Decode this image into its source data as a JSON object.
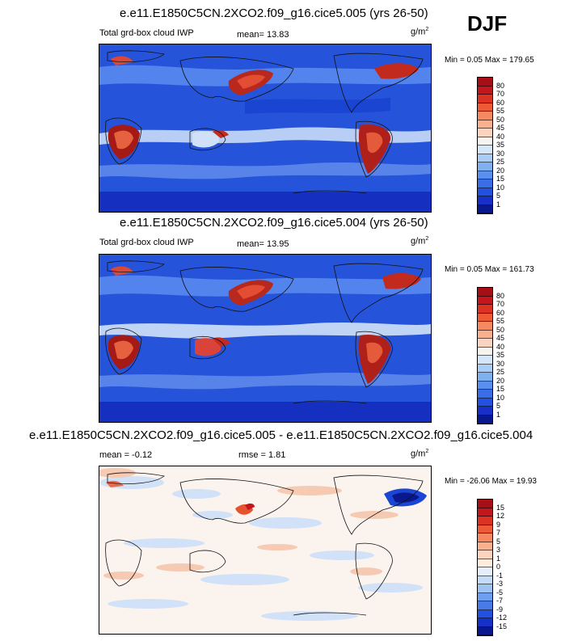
{
  "season": "DJF",
  "panels": [
    {
      "title": "e.e11.E1850C5CN.2XCO2.f09_g16.cice5.005 (yrs 26-50)",
      "left_label": "Total grd-box cloud IWP",
      "mean_label": "mean=  13.83",
      "rmse_label": "",
      "units": "g/m",
      "units_exp": "2",
      "minmax": "Min =   0.05 Max = 179.65",
      "colorbar_labels": [
        "80",
        "70",
        "60",
        "55",
        "50",
        "45",
        "40",
        "35",
        "30",
        "25",
        "20",
        "15",
        "10",
        "5",
        "1"
      ],
      "colorbar_colors": [
        "#a50f15",
        "#c4161c",
        "#dc3224",
        "#ee5a36",
        "#f6895f",
        "#f9b08f",
        "#fbd4bf",
        "#f7f3ee",
        "#d4e6f8",
        "#a9cdf5",
        "#7fb0f0",
        "#5a8ff0",
        "#3a6ee8",
        "#2250e0",
        "#1730c8",
        "#0a1890"
      ],
      "chart_data": {
        "type": "heatmap",
        "title": "e.e11.E1850C5CN.2XCO2.f09_g16.cice5.005 (yrs 26-50)",
        "variable": "Total grd-box cloud IWP",
        "units": "g/m2",
        "mean": 13.83,
        "min": 0.05,
        "max": 179.65,
        "contour_levels": [
          1,
          5,
          10,
          15,
          20,
          25,
          30,
          35,
          40,
          45,
          50,
          55,
          60,
          70,
          80
        ]
      }
    },
    {
      "title": "e.e11.E1850C5CN.2XCO2.f09_g16.cice5.004 (yrs 26-50)",
      "left_label": "Total grd-box cloud IWP",
      "mean_label": "mean=  13.95",
      "rmse_label": "",
      "units": "g/m",
      "units_exp": "2",
      "minmax": "Min =   0.05 Max = 161.73",
      "colorbar_labels": [
        "80",
        "70",
        "60",
        "55",
        "50",
        "45",
        "40",
        "35",
        "30",
        "25",
        "20",
        "15",
        "10",
        "5",
        "1"
      ],
      "colorbar_colors": [
        "#a50f15",
        "#c4161c",
        "#dc3224",
        "#ee5a36",
        "#f6895f",
        "#f9b08f",
        "#fbd4bf",
        "#f7f3ee",
        "#d4e6f8",
        "#a9cdf5",
        "#7fb0f0",
        "#5a8ff0",
        "#3a6ee8",
        "#2250e0",
        "#1730c8",
        "#0a1890"
      ],
      "chart_data": {
        "type": "heatmap",
        "title": "e.e11.E1850C5CN.2XCO2.f09_g16.cice5.004 (yrs 26-50)",
        "variable": "Total grd-box cloud IWP",
        "units": "g/m2",
        "mean": 13.95,
        "min": 0.05,
        "max": 161.73,
        "contour_levels": [
          1,
          5,
          10,
          15,
          20,
          25,
          30,
          35,
          40,
          45,
          50,
          55,
          60,
          70,
          80
        ]
      }
    },
    {
      "title": "e.e11.E1850C5CN.2XCO2.f09_g16.cice5.005 - e.e11.E1850C5CN.2XCO2.f09_g16.cice5.004",
      "left_label": "mean =  -0.12",
      "mean_label": "",
      "rmse_label": "rmse =   1.81",
      "units": "g/m",
      "units_exp": "2",
      "minmax": "Min = -26.06 Max =  19.93",
      "colorbar_labels": [
        "15",
        "12",
        "9",
        "7",
        "5",
        "3",
        "1",
        "0",
        "-1",
        "-3",
        "-5",
        "-7",
        "-9",
        "-12",
        "-15"
      ],
      "colorbar_colors": [
        "#a50f15",
        "#c4161c",
        "#dc3224",
        "#ee5a36",
        "#f6895f",
        "#f9b08f",
        "#fbd4bf",
        "#fdebde",
        "#e4effb",
        "#c3dcf7",
        "#9ec4f3",
        "#6f9ff0",
        "#4a7ae8",
        "#2250e0",
        "#1730c8",
        "#0a1890"
      ],
      "chart_data": {
        "type": "heatmap",
        "title": "e.e11.E1850C5CN.2XCO2.f09_g16.cice5.005 - e.e11.E1850C5CN.2XCO2.f09_g16.cice5.004",
        "units": "g/m2",
        "mean": -0.12,
        "rmse": 1.81,
        "min": -26.06,
        "max": 19.93,
        "contour_levels": [
          -15,
          -12,
          -9,
          -7,
          -5,
          -3,
          -1,
          0,
          1,
          3,
          5,
          7,
          9,
          12,
          15
        ]
      }
    }
  ]
}
